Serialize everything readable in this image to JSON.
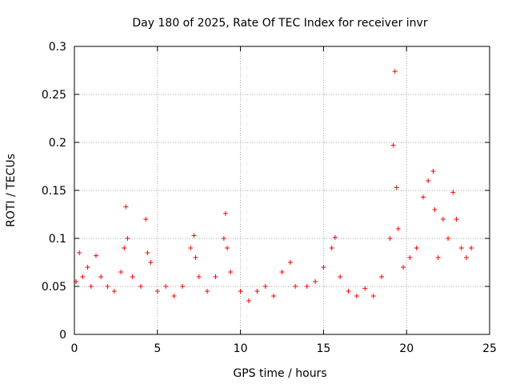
{
  "chart_data": {
    "type": "scatter",
    "title": "Day 180 of 2025, Rate Of TEC Index for receiver invr",
    "xlabel": "GPS time / hours",
    "ylabel": "ROTI / TECUs",
    "xlim": [
      0,
      25
    ],
    "ylim": [
      0,
      0.3
    ],
    "x_ticks": [
      0,
      5,
      10,
      15,
      20,
      25
    ],
    "x_tick_labels": [
      "0",
      "5",
      "10",
      "15",
      "20",
      "25"
    ],
    "y_ticks": [
      0,
      0.05,
      0.1,
      0.15,
      0.2,
      0.25,
      0.3
    ],
    "y_tick_labels": [
      "0",
      "0.05",
      "0.1",
      "0.15",
      "0.2",
      "0.25",
      "0.3"
    ],
    "grid": true,
    "marker": "+",
    "series": [
      {
        "name": "ROTI",
        "color": "#ff0000",
        "x": [
          0.1,
          0.3,
          0.5,
          0.8,
          1.0,
          1.3,
          1.6,
          2.0,
          2.4,
          2.8,
          3.0,
          3.1,
          3.2,
          3.5,
          4.0,
          4.3,
          4.4,
          4.6,
          5.0,
          5.5,
          6.0,
          6.5,
          7.0,
          7.2,
          7.3,
          7.5,
          8.0,
          8.5,
          9.0,
          9.1,
          9.2,
          9.4,
          10.0,
          10.5,
          11.0,
          11.5,
          12.0,
          12.5,
          13.0,
          13.3,
          14.0,
          14.5,
          15.0,
          15.5,
          15.7,
          16.0,
          16.5,
          17.0,
          17.5,
          18.0,
          18.5,
          19.0,
          19.2,
          19.3,
          19.4,
          19.5,
          19.8,
          20.2,
          20.6,
          21.0,
          21.3,
          21.6,
          21.7,
          21.9,
          22.2,
          22.5,
          22.8,
          23.0,
          23.3,
          23.6,
          23.9
        ],
        "y": [
          0.055,
          0.085,
          0.06,
          0.07,
          0.05,
          0.082,
          0.06,
          0.05,
          0.045,
          0.065,
          0.09,
          0.133,
          0.1,
          0.06,
          0.05,
          0.12,
          0.085,
          0.075,
          0.045,
          0.05,
          0.04,
          0.05,
          0.09,
          0.103,
          0.08,
          0.06,
          0.045,
          0.06,
          0.1,
          0.126,
          0.09,
          0.065,
          0.045,
          0.035,
          0.045,
          0.05,
          0.04,
          0.065,
          0.075,
          0.05,
          0.05,
          0.055,
          0.07,
          0.09,
          0.101,
          0.06,
          0.045,
          0.04,
          0.048,
          0.04,
          0.06,
          0.1,
          0.197,
          0.274,
          0.153,
          0.11,
          0.07,
          0.08,
          0.09,
          0.143,
          0.16,
          0.17,
          0.13,
          0.08,
          0.12,
          0.1,
          0.148,
          0.12,
          0.09,
          0.08,
          0.09
        ]
      }
    ]
  }
}
